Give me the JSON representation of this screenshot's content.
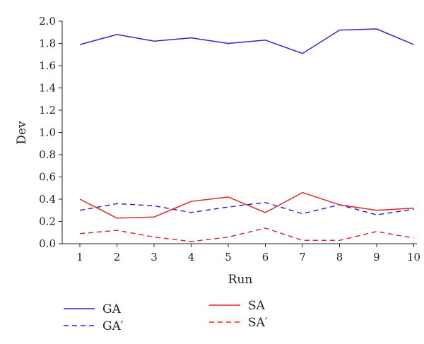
{
  "chart_data": {
    "type": "line",
    "title": "",
    "xlabel": "Run",
    "ylabel": "Dev",
    "x": [
      1,
      2,
      3,
      4,
      5,
      6,
      7,
      8,
      9,
      10
    ],
    "xticks": [
      "1",
      "2",
      "3",
      "4",
      "5",
      "6",
      "7",
      "8",
      "9",
      "10"
    ],
    "ylim": [
      0,
      2.0
    ],
    "yticks": [
      "0.0",
      "0.2",
      "0.4",
      "0.6",
      "0.8",
      "1.0",
      "1.2",
      "1.4",
      "1.6",
      "1.8",
      "2.0"
    ],
    "grid": false,
    "legend_position": "bottom",
    "series": [
      {
        "name": "GA",
        "color": "#2a2acd",
        "dash": "solid",
        "values": [
          1.79,
          1.88,
          1.82,
          1.85,
          1.8,
          1.83,
          1.71,
          1.92,
          1.93,
          1.79
        ]
      },
      {
        "name": "GA′",
        "color": "#2a2acd",
        "dash": "dashed",
        "values": [
          0.3,
          0.36,
          0.34,
          0.28,
          0.33,
          0.37,
          0.27,
          0.35,
          0.26,
          0.31
        ]
      },
      {
        "name": "SA",
        "color": "#e0282a",
        "dash": "solid",
        "values": [
          0.4,
          0.23,
          0.24,
          0.38,
          0.42,
          0.28,
          0.46,
          0.35,
          0.3,
          0.32
        ]
      },
      {
        "name": "SA′",
        "color": "#e0282a",
        "dash": "dashed",
        "values": [
          0.09,
          0.12,
          0.06,
          0.02,
          0.06,
          0.14,
          0.03,
          0.03,
          0.11,
          0.05
        ]
      }
    ]
  }
}
